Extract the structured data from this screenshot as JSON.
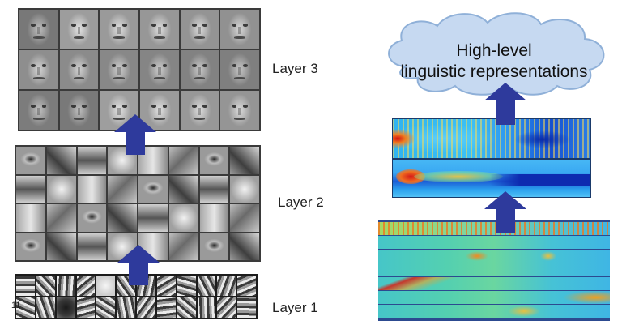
{
  "labels": {
    "layer3": "Layer 3",
    "layer2": "Layer 2",
    "layer1": "Layer 1"
  },
  "cloud": {
    "line1": "High-level",
    "line2": "linguistic representations"
  },
  "page_number": "11",
  "colors": {
    "arrow": "#2e3a9c",
    "cloud_fill": "#c6d9f1",
    "cloud_stroke": "#8fb0d8",
    "grid_border": "#3a3a3a"
  }
}
